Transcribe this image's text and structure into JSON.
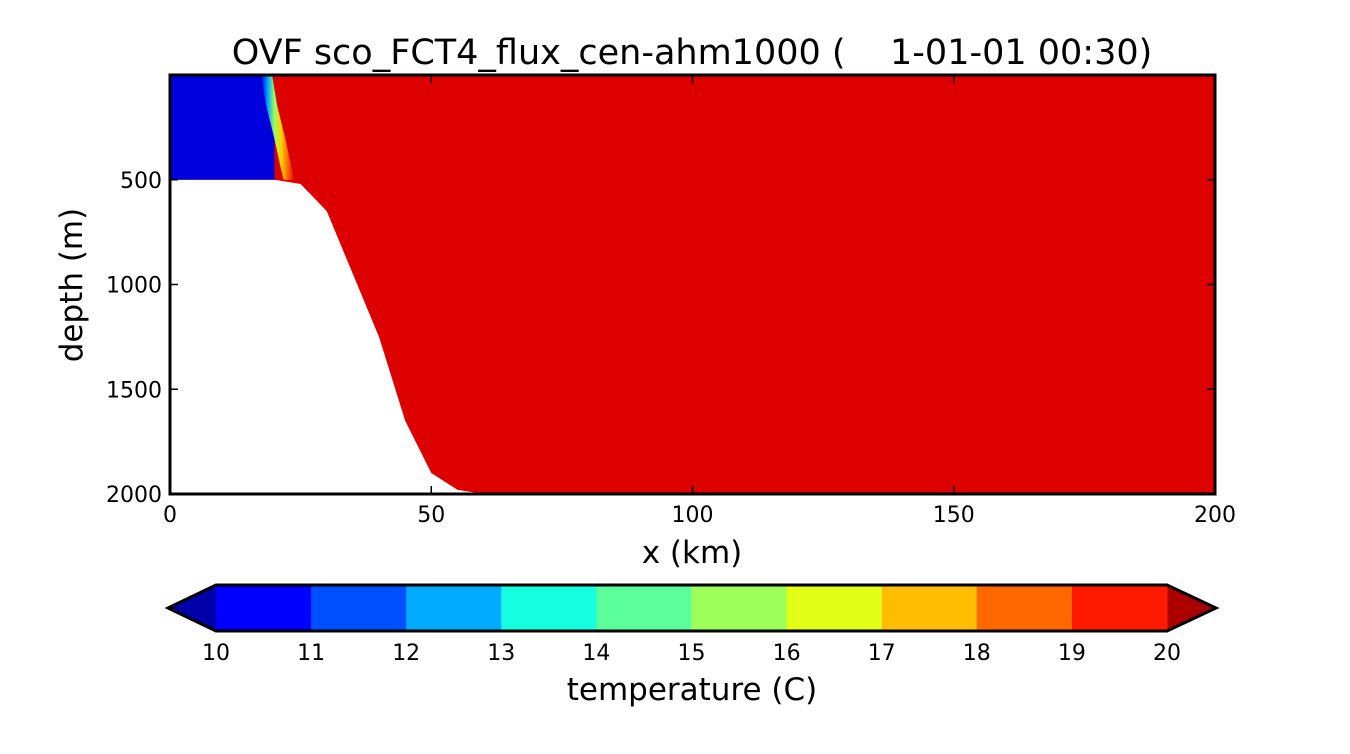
{
  "chart_data": {
    "type": "heatmap",
    "title": "OVF sco_FCT4_flux_cen-ahm1000 (    1-01-01 00:30)",
    "xlabel": "x (km)",
    "ylabel": "depth (m)",
    "xlim": [
      0,
      200
    ],
    "ylim": [
      2000,
      0
    ],
    "y_inverted": true,
    "x_ticks": [
      {
        "value": 0,
        "label": "0"
      },
      {
        "value": 50,
        "label": "50"
      },
      {
        "value": 100,
        "label": "100"
      },
      {
        "value": 150,
        "label": "150"
      },
      {
        "value": 200,
        "label": "200"
      }
    ],
    "y_ticks": [
      {
        "value": 500,
        "label": "500"
      },
      {
        "value": 1000,
        "label": "1000"
      },
      {
        "value": 1500,
        "label": "1500"
      },
      {
        "value": 2000,
        "label": "2000"
      }
    ],
    "background_temperature_c": 20,
    "fields": [
      {
        "name": "cold reservoir",
        "x_range_km": [
          0,
          18
        ],
        "depth_range_m": [
          0,
          500
        ],
        "temperature_c": 10
      },
      {
        "name": "front",
        "x_range_km": [
          18,
          23
        ],
        "depth_range_m": [
          0,
          500
        ],
        "temperature_range_c": [
          10,
          20
        ]
      },
      {
        "name": "warm ambient water",
        "x_range_km": [
          18,
          200
        ],
        "depth_range_m": [
          0,
          2000
        ],
        "temperature_c": 20
      }
    ],
    "front_profile": [
      {
        "depth_m": 0,
        "x_km": 18.5
      },
      {
        "depth_m": 150,
        "x_km": 19.5
      },
      {
        "depth_m": 300,
        "x_km": 21.0
      },
      {
        "depth_m": 450,
        "x_km": 22.3
      },
      {
        "depth_m": 500,
        "x_km": 22.8
      }
    ],
    "bathymetry": [
      {
        "x_km": 0,
        "depth_m": 500
      },
      {
        "x_km": 20,
        "depth_m": 500
      },
      {
        "x_km": 25,
        "depth_m": 520
      },
      {
        "x_km": 30,
        "depth_m": 650
      },
      {
        "x_km": 35,
        "depth_m": 950
      },
      {
        "x_km": 40,
        "depth_m": 1250
      },
      {
        "x_km": 45,
        "depth_m": 1650
      },
      {
        "x_km": 50,
        "depth_m": 1900
      },
      {
        "x_km": 55,
        "depth_m": 1980
      },
      {
        "x_km": 60,
        "depth_m": 2000
      },
      {
        "x_km": 200,
        "depth_m": 2000
      }
    ],
    "colorbar": {
      "label": "temperature (C)",
      "orientation": "horizontal",
      "extend": "both",
      "under_color": "#0000aa",
      "over_color": "#aa0000",
      "bins": [
        {
          "from": 10,
          "to": 11,
          "color": "#0000ff"
        },
        {
          "from": 11,
          "to": 12,
          "color": "#0050ff"
        },
        {
          "from": 12,
          "to": 13,
          "color": "#00aaff"
        },
        {
          "from": 13,
          "to": 14,
          "color": "#16ffe1"
        },
        {
          "from": 14,
          "to": 15,
          "color": "#5aff9c"
        },
        {
          "from": 15,
          "to": 16,
          "color": "#9cff5a"
        },
        {
          "from": 16,
          "to": 17,
          "color": "#e1ff16"
        },
        {
          "from": 17,
          "to": 18,
          "color": "#ffbd00"
        },
        {
          "from": 18,
          "to": 19,
          "color": "#ff6800"
        },
        {
          "from": 19,
          "to": 20,
          "color": "#ff1a00"
        }
      ],
      "tick_labels": [
        "10",
        "11",
        "12",
        "13",
        "14",
        "15",
        "16",
        "17",
        "18",
        "19",
        "20"
      ]
    },
    "colors": {
      "cold": "#0000dd",
      "warm": "#dd0000"
    }
  }
}
